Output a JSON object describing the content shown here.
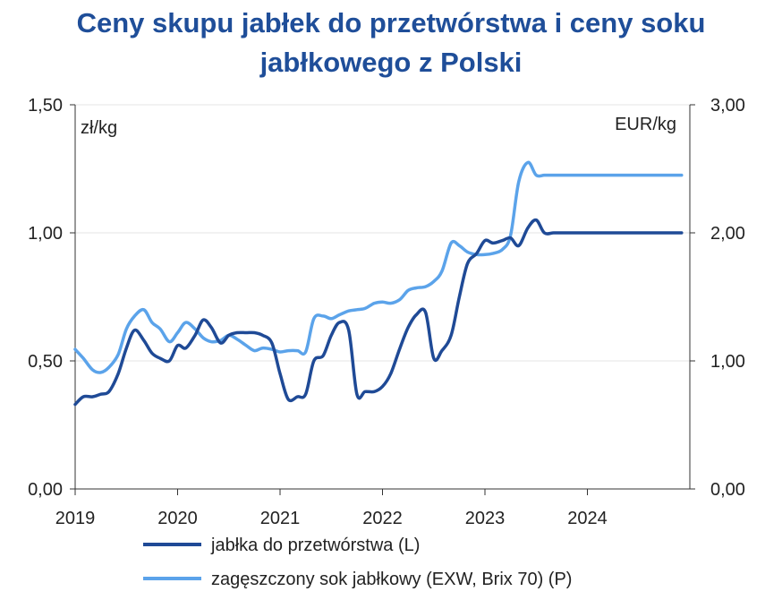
{
  "title_line1": "Ceny skupu jabłek do przetwórstwa i ceny soku",
  "title_line2": "jabłkowego z Polski",
  "chart_data": {
    "type": "line",
    "left_axis": {
      "unit": "zł/kg",
      "ylim": [
        0,
        1.5
      ],
      "ticks": [
        "0,00",
        "0,50",
        "1,00",
        "1,50"
      ],
      "tick_values": [
        0,
        0.5,
        1.0,
        1.5
      ]
    },
    "right_axis": {
      "unit": "EUR/kg",
      "ylim": [
        0,
        3.0
      ],
      "ticks": [
        "0,00",
        "1,00",
        "2,00",
        "3,00"
      ],
      "tick_values": [
        0,
        1.0,
        2.0,
        3.0
      ]
    },
    "x_ticks": [
      "2019",
      "2020",
      "2021",
      "2022",
      "2023",
      "2024"
    ],
    "x_range": [
      2019.0,
      2025.0
    ],
    "grid": "horizontal",
    "legend_position": "bottom",
    "series": [
      {
        "name": "jabłka do przetwórstwa (L)",
        "axis": "left",
        "color": "#1f4a96",
        "x": [
          2019.0,
          2019.08,
          2019.17,
          2019.25,
          2019.33,
          2019.42,
          2019.5,
          2019.58,
          2019.67,
          2019.75,
          2019.83,
          2019.92,
          2020.0,
          2020.08,
          2020.17,
          2020.25,
          2020.33,
          2020.42,
          2020.5,
          2020.58,
          2020.67,
          2020.75,
          2020.83,
          2020.92,
          2021.0,
          2021.08,
          2021.17,
          2021.25,
          2021.33,
          2021.42,
          2021.5,
          2021.58,
          2021.67,
          2021.75,
          2021.83,
          2021.92,
          2022.0,
          2022.08,
          2022.17,
          2022.25,
          2022.33,
          2022.42,
          2022.5,
          2022.58,
          2022.67,
          2022.75,
          2022.83,
          2022.92,
          2023.0,
          2023.08,
          2023.17,
          2023.25,
          2023.33,
          2023.42,
          2023.5,
          2023.58,
          2023.67,
          2023.75,
          2023.83,
          2023.92,
          2024.0,
          2024.08,
          2024.17,
          2024.25,
          2024.33,
          2024.42,
          2024.5,
          2024.58,
          2024.67,
          2024.75,
          2024.83,
          2024.92
        ],
        "values": [
          0.33,
          0.36,
          0.36,
          0.37,
          0.38,
          0.45,
          0.55,
          0.62,
          0.58,
          0.53,
          0.51,
          0.5,
          0.56,
          0.55,
          0.6,
          0.66,
          0.63,
          0.57,
          0.6,
          0.61,
          0.61,
          0.61,
          0.6,
          0.57,
          0.45,
          0.35,
          0.36,
          0.37,
          0.5,
          0.52,
          0.6,
          0.65,
          0.62,
          0.37,
          0.38,
          0.38,
          0.4,
          0.45,
          0.55,
          0.63,
          0.68,
          0.69,
          0.51,
          0.54,
          0.6,
          0.75,
          0.88,
          0.92,
          0.97,
          0.96,
          0.97,
          0.98,
          0.95,
          1.02,
          1.05,
          1.0,
          1.0,
          1.0,
          1.0,
          1.0,
          1.0,
          1.0,
          1.0,
          1.0,
          1.0,
          1.0,
          1.0,
          1.0,
          1.0,
          1.0,
          1.0,
          1.0
        ]
      },
      {
        "name": "zagęszczony sok jabłkowy (EXW, Brix 70) (P)",
        "axis": "right",
        "color": "#5ba3ea",
        "x": [
          2019.0,
          2019.08,
          2019.17,
          2019.25,
          2019.33,
          2019.42,
          2019.5,
          2019.58,
          2019.67,
          2019.75,
          2019.83,
          2019.92,
          2020.0,
          2020.08,
          2020.17,
          2020.25,
          2020.33,
          2020.42,
          2020.5,
          2020.58,
          2020.67,
          2020.75,
          2020.83,
          2020.92,
          2021.0,
          2021.08,
          2021.17,
          2021.25,
          2021.33,
          2021.42,
          2021.5,
          2021.58,
          2021.67,
          2021.75,
          2021.83,
          2021.92,
          2022.0,
          2022.08,
          2022.17,
          2022.25,
          2022.33,
          2022.42,
          2022.5,
          2022.58,
          2022.67,
          2022.75,
          2022.83,
          2022.92,
          2023.0,
          2023.08,
          2023.17,
          2023.25,
          2023.33,
          2023.42,
          2023.5,
          2023.58,
          2023.67,
          2023.75,
          2023.83,
          2023.92,
          2024.0,
          2024.08,
          2024.17,
          2024.25,
          2024.33,
          2024.42,
          2024.5,
          2024.58,
          2024.67,
          2024.75,
          2024.83,
          2024.92
        ],
        "values": [
          1.09,
          1.02,
          0.93,
          0.91,
          0.95,
          1.05,
          1.25,
          1.35,
          1.4,
          1.3,
          1.25,
          1.15,
          1.22,
          1.3,
          1.25,
          1.18,
          1.15,
          1.16,
          1.2,
          1.17,
          1.12,
          1.08,
          1.1,
          1.09,
          1.07,
          1.08,
          1.08,
          1.07,
          1.33,
          1.35,
          1.33,
          1.36,
          1.39,
          1.4,
          1.41,
          1.45,
          1.46,
          1.45,
          1.48,
          1.55,
          1.57,
          1.58,
          1.62,
          1.7,
          1.92,
          1.9,
          1.85,
          1.83,
          1.83,
          1.84,
          1.87,
          1.98,
          2.4,
          2.55,
          2.45,
          2.45,
          2.45,
          2.45,
          2.45,
          2.45,
          2.45,
          2.45,
          2.45,
          2.45,
          2.45,
          2.45,
          2.45,
          2.45,
          2.45,
          2.45,
          2.45,
          2.45
        ]
      }
    ]
  }
}
